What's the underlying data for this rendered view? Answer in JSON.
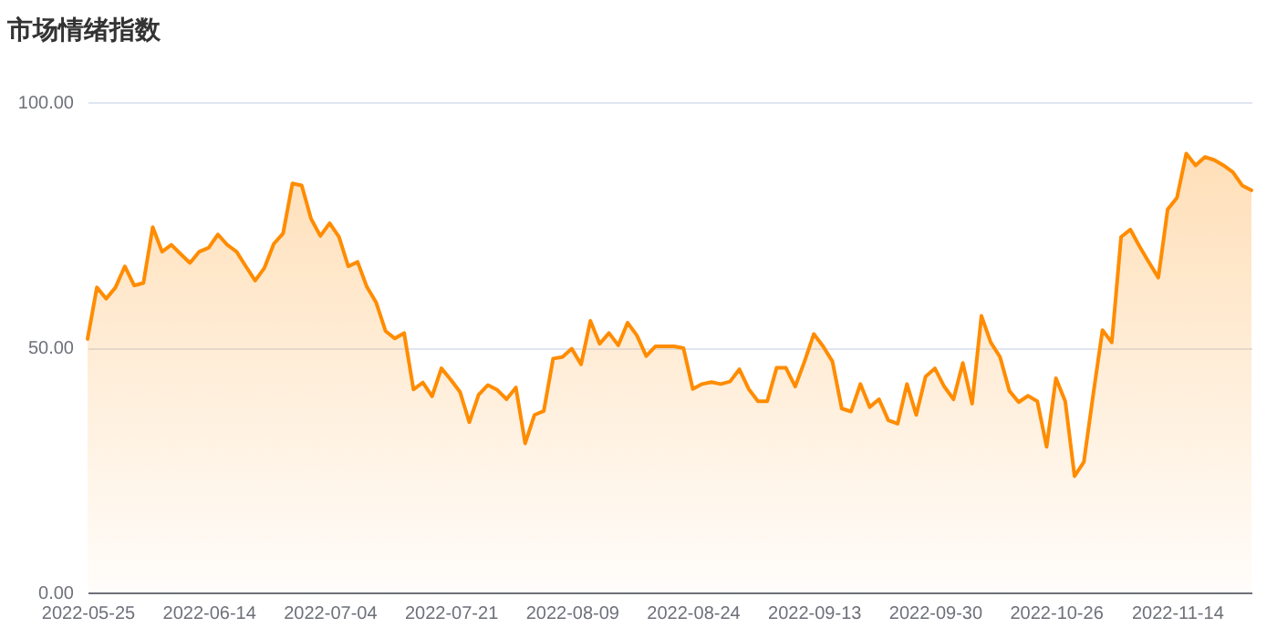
{
  "chart_data": {
    "type": "area",
    "title": "市场情绪指数",
    "categories": [
      "2022-05-25",
      null,
      null,
      null,
      null,
      null,
      null,
      null,
      null,
      null,
      null,
      null,
      null,
      "2022-06-14",
      null,
      null,
      null,
      null,
      null,
      null,
      null,
      null,
      null,
      null,
      null,
      null,
      "2022-07-04",
      null,
      null,
      null,
      null,
      null,
      null,
      null,
      null,
      null,
      null,
      null,
      null,
      "2022-07-21",
      null,
      null,
      null,
      null,
      null,
      null,
      null,
      null,
      null,
      null,
      null,
      null,
      "2022-08-09",
      null,
      null,
      null,
      null,
      null,
      null,
      null,
      null,
      null,
      null,
      null,
      null,
      "2022-08-24",
      null,
      null,
      null,
      null,
      null,
      null,
      null,
      null,
      null,
      null,
      null,
      null,
      "2022-09-13",
      null,
      null,
      null,
      null,
      null,
      null,
      null,
      null,
      null,
      null,
      null,
      null,
      "2022-09-30",
      null,
      null,
      null,
      null,
      null,
      null,
      null,
      null,
      null,
      null,
      null,
      null,
      "2022-10-26",
      null,
      null,
      null,
      null,
      null,
      null,
      null,
      null,
      null,
      null,
      null,
      null,
      "2022-11-14",
      null,
      null,
      null,
      null,
      null,
      null,
      null,
      null
    ],
    "series": [
      {
        "color": "#ff8c00",
        "values": [
          51.7,
          62.2,
          59.9,
          62.2,
          66.5,
          62.6,
          63.1,
          74.5,
          69.5,
          70.9,
          69,
          67.2,
          69.5,
          70.3,
          73,
          70.9,
          69.5,
          66.5,
          63.6,
          66.2,
          71.1,
          73.2,
          83.4,
          83,
          76.2,
          72.7,
          75.3,
          72.5,
          66.5,
          67.4,
          62.3,
          59.1,
          53.3,
          51.8,
          52.9,
          41.4,
          42.8,
          40,
          45.7,
          43.4,
          40.9,
          34.7,
          40.3,
          42.3,
          41.3,
          39.4,
          41.8,
          30.4,
          36.2,
          37,
          47.7,
          48,
          49.7,
          46.5,
          55.4,
          50.7,
          52.9,
          50.4,
          55,
          52.4,
          48.2,
          50.2,
          50.2,
          50.2,
          49.8,
          41.5,
          42.5,
          42.9,
          42.5,
          43,
          45.5,
          41.5,
          39,
          39,
          45.8,
          45.8,
          42,
          47.1,
          52.7,
          50.2,
          47.1,
          37.5,
          36.9,
          42.5,
          37.8,
          39.4,
          35.1,
          34.4,
          42.5,
          36.2,
          44,
          45.7,
          42,
          39.4,
          46.8,
          38.5,
          56.4,
          51,
          48,
          41.1,
          38.8,
          40.1,
          39,
          29.7,
          43.7,
          39,
          23.7,
          26.6,
          40.3,
          53.5,
          51,
          72.5,
          74,
          70.5,
          67.3,
          64.2,
          78.1,
          80.5,
          89.5,
          87.1,
          88.8,
          88.2,
          87.1,
          85.7,
          83,
          82
        ]
      }
    ],
    "ylim": [
      0,
      100
    ],
    "yticks": [
      {
        "value": 0,
        "label": "0.00"
      },
      {
        "value": 50,
        "label": "50.00"
      },
      {
        "value": 100,
        "label": "100.00"
      }
    ],
    "grid": "y"
  }
}
